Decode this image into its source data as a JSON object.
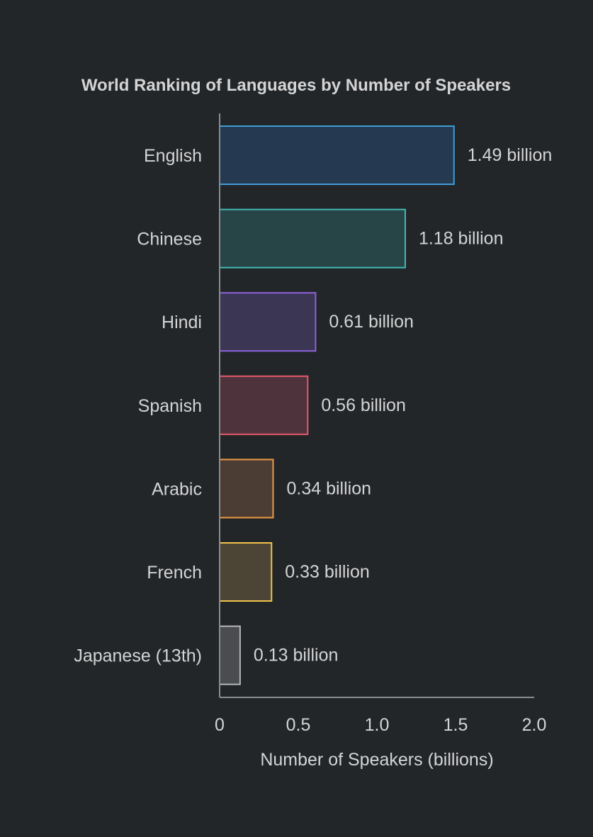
{
  "chart_data": {
    "type": "bar",
    "orientation": "horizontal",
    "title": "World Ranking of Languages by Number of Speakers",
    "xlabel": "Number of Speakers (billions)",
    "ylabel": "",
    "xlim": [
      0,
      2.0
    ],
    "x_ticks": [
      {
        "value": 0,
        "label": "0"
      },
      {
        "value": 0.5,
        "label": "0.5"
      },
      {
        "value": 1.0,
        "label": "1.0"
      },
      {
        "value": 1.5,
        "label": "1.5"
      },
      {
        "value": 2.0,
        "label": "2.0"
      }
    ],
    "grid": false,
    "categories": [
      "English",
      "Chinese",
      "Hindi",
      "Spanish",
      "Arabic",
      "French",
      "Japanese (13th)"
    ],
    "values": [
      1.49,
      1.18,
      0.61,
      0.56,
      0.34,
      0.33,
      0.13
    ],
    "value_labels": [
      "1.49 billion",
      "1.18 billion",
      "0.61 billion",
      "0.56 billion",
      "0.34 billion",
      "0.33 billion",
      "0.13 billion"
    ],
    "colors": {
      "background": "#232629",
      "text": "#d4d4d4",
      "axis": "#8a8d90",
      "bars": [
        {
          "fill": "#253a51",
          "stroke": "#3f9bd9"
        },
        {
          "fill": "#274447",
          "stroke": "#44b9b4"
        },
        {
          "fill": "#3b3654",
          "stroke": "#8e63db"
        },
        {
          "fill": "#4f333c",
          "stroke": "#e35a6c"
        },
        {
          "fill": "#4b3d33",
          "stroke": "#ea9a44"
        },
        {
          "fill": "#4c4536",
          "stroke": "#f2c14e"
        },
        {
          "fill": "#4a4c4f",
          "stroke": "#b5b8bb"
        }
      ]
    }
  }
}
